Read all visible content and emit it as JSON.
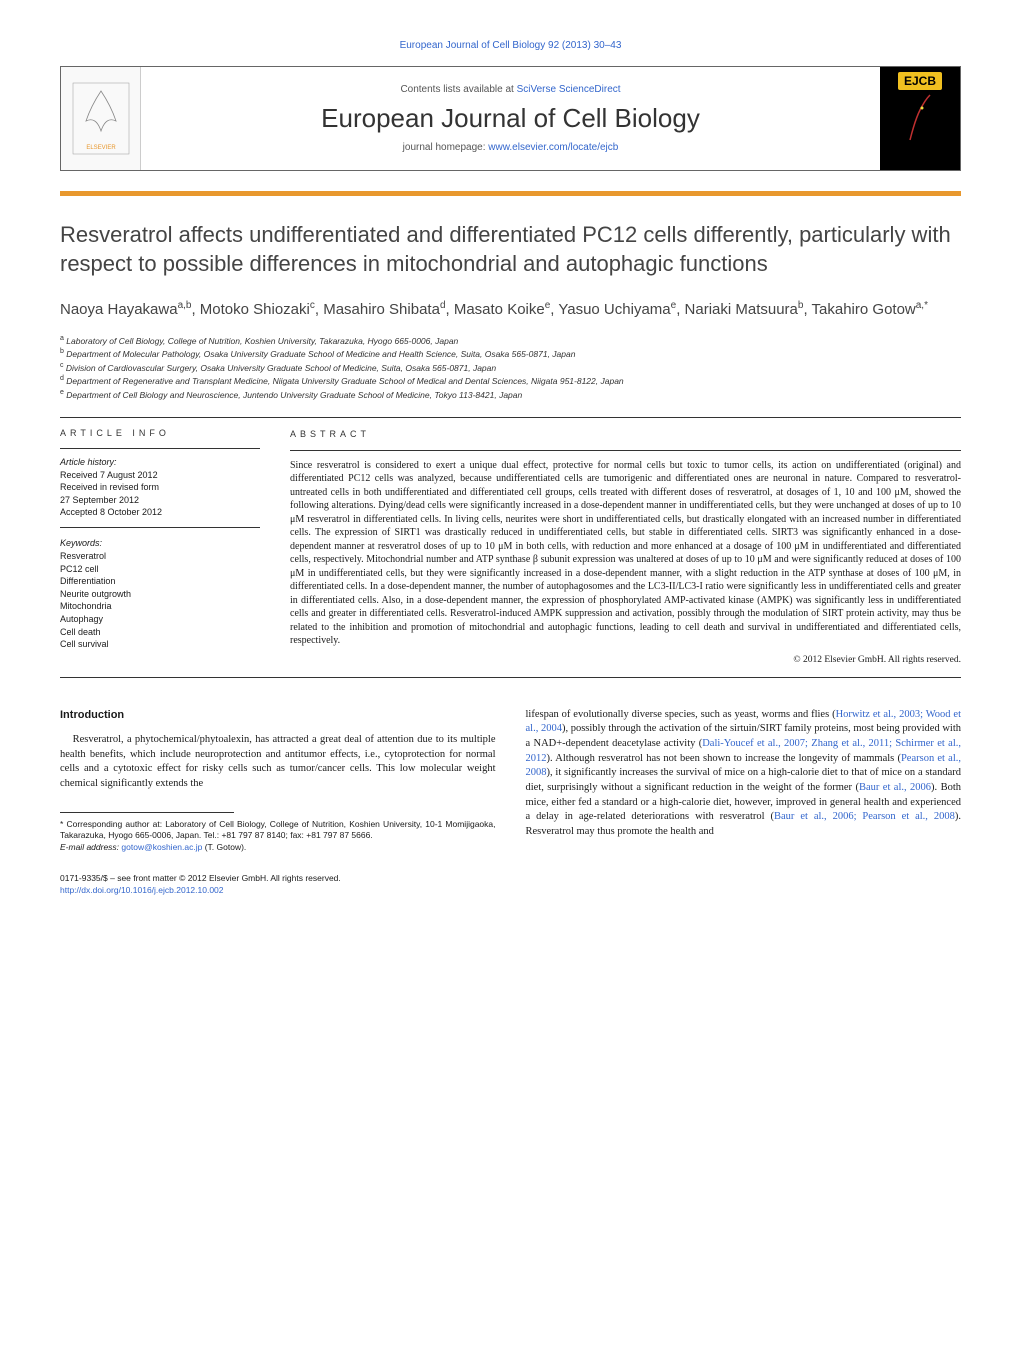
{
  "header": {
    "citation": "European Journal of Cell Biology 92 (2013) 30–43",
    "contents_prefix": "Contents lists available at ",
    "contents_link": "SciVerse ScienceDirect",
    "journal_name": "European Journal of Cell Biology",
    "homepage_prefix": "journal homepage: ",
    "homepage_link": "www.elsevier.com/locate/ejcb",
    "ejcb_badge": "EJCB"
  },
  "title": "Resveratrol affects undifferentiated and differentiated PC12 cells differently, particularly with respect to possible differences in mitochondrial and autophagic functions",
  "authors_html": "Naoya Hayakawa<sup>a,b</sup>, Motoko Shiozaki<sup>c</sup>, Masahiro Shibata<sup>d</sup>, Masato Koike<sup>e</sup>, Yasuo Uchiyama<sup>e</sup>, Nariaki Matsuura<sup>b</sup>, Takahiro Gotow<sup>a,*</sup>",
  "affiliations": [
    {
      "sup": "a",
      "text": "Laboratory of Cell Biology, College of Nutrition, Koshien University, Takarazuka, Hyogo 665-0006, Japan"
    },
    {
      "sup": "b",
      "text": "Department of Molecular Pathology, Osaka University Graduate School of Medicine and Health Science, Suita, Osaka 565-0871, Japan"
    },
    {
      "sup": "c",
      "text": "Division of Cardiovascular Surgery, Osaka University Graduate School of Medicine, Suita, Osaka 565-0871, Japan"
    },
    {
      "sup": "d",
      "text": "Department of Regenerative and Transplant Medicine, Niigata University Graduate School of Medical and Dental Sciences, Niigata 951-8122, Japan"
    },
    {
      "sup": "e",
      "text": "Department of Cell Biology and Neuroscience, Juntendo University Graduate School of Medicine, Tokyo 113-8421, Japan"
    }
  ],
  "article_info": {
    "heading": "article info",
    "history_label": "Article history:",
    "history": [
      "Received 7 August 2012",
      "Received in revised form",
      "27 September 2012",
      "Accepted 8 October 2012"
    ],
    "keywords_label": "Keywords:",
    "keywords": [
      "Resveratrol",
      "PC12 cell",
      "Differentiation",
      "Neurite outgrowth",
      "Mitochondria",
      "Autophagy",
      "Cell death",
      "Cell survival"
    ]
  },
  "abstract": {
    "heading": "abstract",
    "text": "Since resveratrol is considered to exert a unique dual effect, protective for normal cells but toxic to tumor cells, its action on undifferentiated (original) and differentiated PC12 cells was analyzed, because undifferentiated cells are tumorigenic and differentiated ones are neuronal in nature. Compared to resveratrol-untreated cells in both undifferentiated and differentiated cell groups, cells treated with different doses of resveratrol, at dosages of 1, 10 and 100 μM, showed the following alterations. Dying/dead cells were significantly increased in a dose-dependent manner in undifferentiated cells, but they were unchanged at doses of up to 10 μM resveratrol in differentiated cells. In living cells, neurites were short in undifferentiated cells, but drastically elongated with an increased number in differentiated cells. The expression of SIRT1 was drastically reduced in undifferentiated cells, but stable in differentiated cells. SIRT3 was significantly enhanced in a dose-dependent manner at resveratrol doses of up to 10 μM in both cells, with reduction and more enhanced at a dosage of 100 μM in undifferentiated and differentiated cells, respectively. Mitochondrial number and ATP synthase β subunit expression was unaltered at doses of up to 10 μM and were significantly reduced at doses of 100 μM in undifferentiated cells, but they were significantly increased in a dose-dependent manner, with a slight reduction in the ATP synthase at doses of 100 μM, in differentiated cells. In a dose-dependent manner, the number of autophagosomes and the LC3-II/LC3-I ratio were significantly less in undifferentiated cells and greater in differentiated cells. Also, in a dose-dependent manner, the expression of phosphorylated AMP-activated kinase (AMPK) was significantly less in undifferentiated cells and greater in differentiated cells. Resveratrol-induced AMPK suppression and activation, possibly through the modulation of SIRT protein activity, may thus be related to the inhibition and promotion of mitochondrial and autophagic functions, leading to cell death and survival in undifferentiated and differentiated cells, respectively.",
    "copyright": "© 2012 Elsevier GmbH. All rights reserved."
  },
  "body": {
    "intro_heading": "Introduction",
    "col1_p1": "Resveratrol, a phytochemical/phytoalexin, has attracted a great deal of attention due to its multiple health benefits, which include neuroprotection and antitumor effects, i.e., cytoprotection for normal cells and a cytotoxic effect for risky cells such as tumor/cancer cells. This low molecular weight chemical significantly extends the",
    "col2_p1_pre": "lifespan of evolutionally diverse species, such as yeast, worms and flies (",
    "col2_link1": "Horwitz et al., 2003; Wood et al., 2004",
    "col2_p1_mid1": "), possibly through the activation of the sirtuin/SIRT family proteins, most being provided with a NAD+-dependent deacetylase activity (",
    "col2_link2": "Dali-Youcef et al., 2007; Zhang et al., 2011; Schirmer et al., 2012",
    "col2_p1_mid2": "). Although resveratrol has not been shown to increase the longevity of mammals (",
    "col2_link3": "Pearson et al., 2008",
    "col2_p1_mid3": "), it significantly increases the survival of mice on a high-calorie diet to that of mice on a standard diet, surprisingly without a significant reduction in the weight of the former (",
    "col2_link4": "Baur et al., 2006",
    "col2_p1_mid4": "). Both mice, either fed a standard or a high-calorie diet, however, improved in general health and experienced a delay in age-related deteriorations with resveratrol (",
    "col2_link5": "Baur et al., 2006; Pearson et al., 2008",
    "col2_p1_end": "). Resveratrol may thus promote the health and"
  },
  "footnote": {
    "corr": "* Corresponding author at: Laboratory of Cell Biology, College of Nutrition, Koshien University, 10-1 Momijigaoka, Takarazuka, Hyogo 665-0006, Japan. Tel.: +81 797 87 8140; fax: +81 797 87 5666.",
    "email_label": "E-mail address: ",
    "email": "gotow@koshien.ac.jp",
    "email_suffix": " (T. Gotow)."
  },
  "footer": {
    "issn": "0171-9335/$ – see front matter © 2012 Elsevier GmbH. All rights reserved.",
    "doi": "http://dx.doi.org/10.1016/j.ejcb.2012.10.002"
  },
  "colors": {
    "orange_bar": "#e8982e",
    "link": "#3366cc",
    "ejcb_bg": "#f0c020"
  }
}
